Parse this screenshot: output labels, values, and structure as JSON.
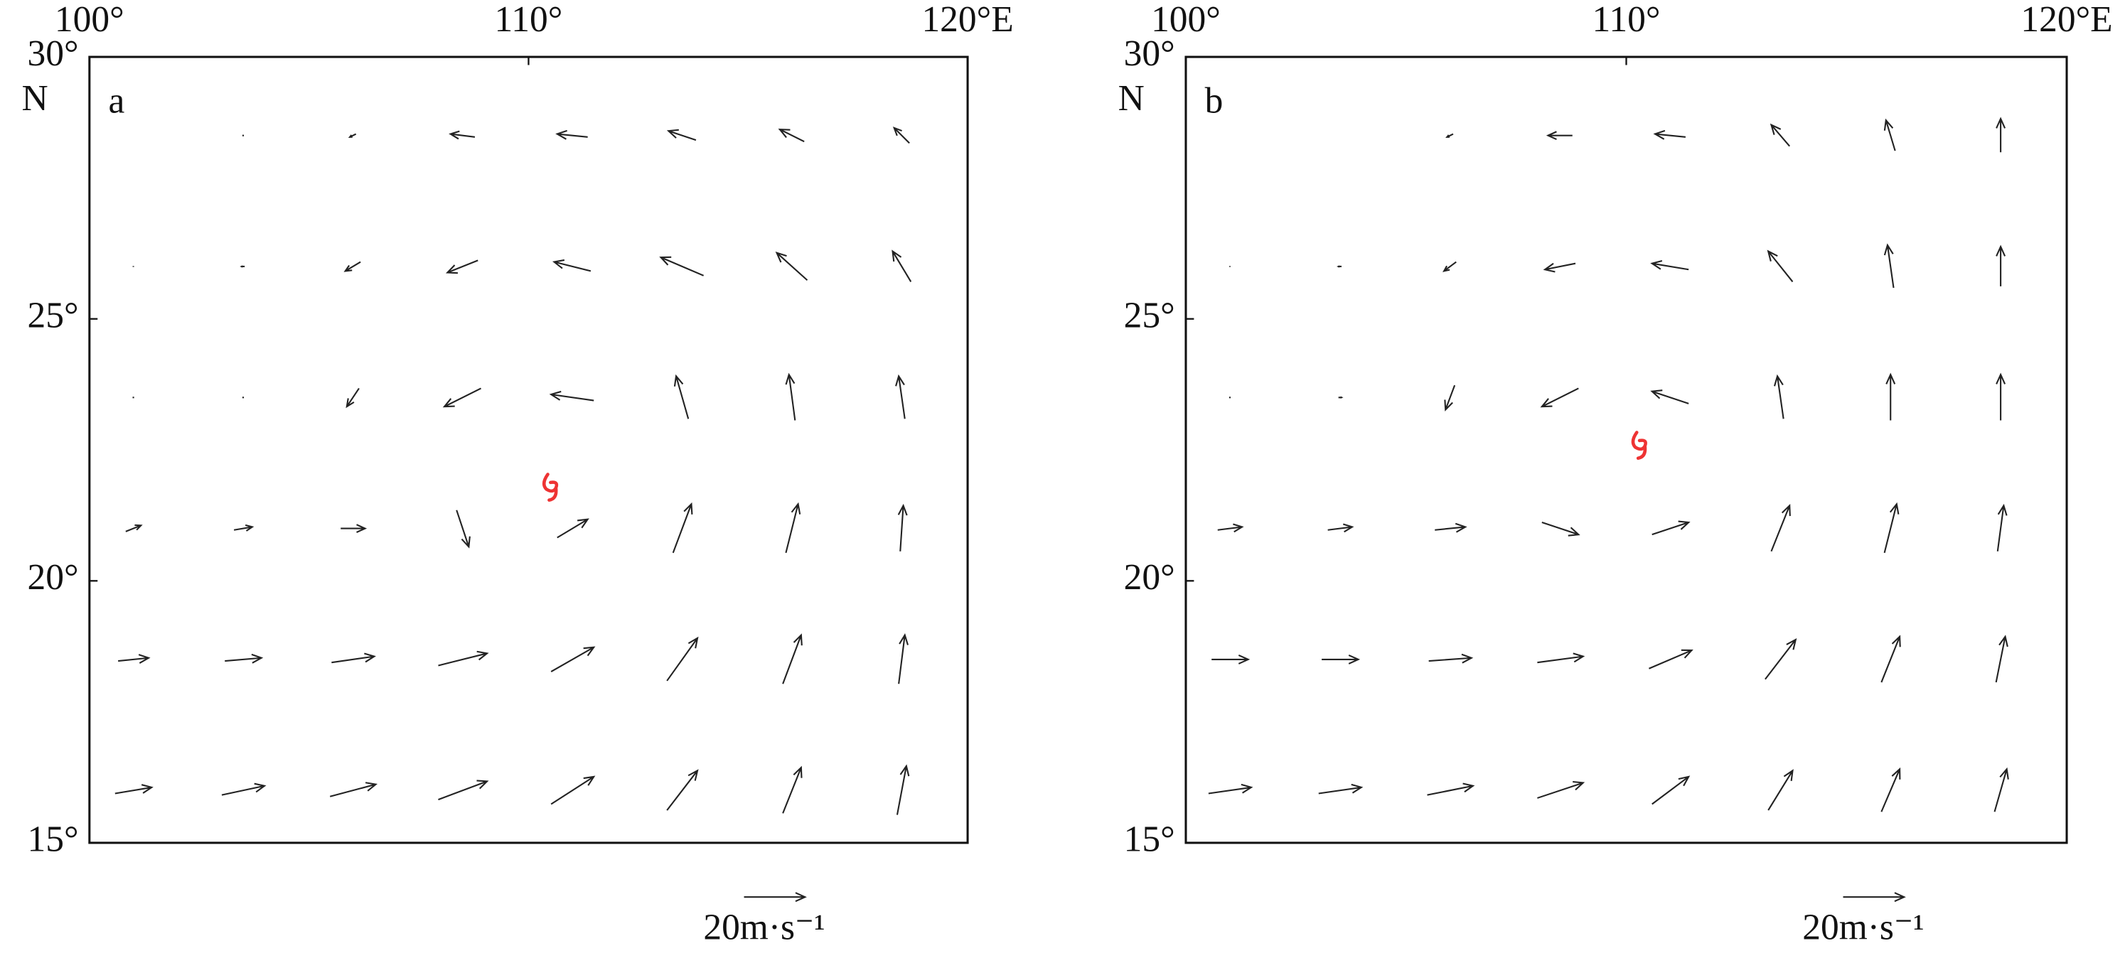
{
  "chart_data": [
    {
      "type": "quiver",
      "label": "a",
      "ylabel": "N",
      "xlim": [
        100,
        120
      ],
      "ylim": [
        15,
        30
      ],
      "xticks": [
        {
          "value": 100,
          "label": "100°"
        },
        {
          "value": 110,
          "label": "110°"
        },
        {
          "value": 120,
          "label": "120°E"
        }
      ],
      "yticks": [
        {
          "value": 30,
          "label": "30°"
        },
        {
          "value": 25,
          "label": "25°"
        },
        {
          "value": 20,
          "label": "20°"
        },
        {
          "value": 15,
          "label": "15°"
        }
      ],
      "lon": [
        101,
        103.5,
        106,
        108.5,
        111,
        113.5,
        116,
        118.5
      ],
      "lat": [
        16,
        18.5,
        21,
        23.5,
        26,
        28.5
      ],
      "u": [
        [
          12,
          14,
          15,
          16,
          14,
          10,
          6,
          3
        ],
        [
          10,
          12,
          14,
          16,
          14,
          10,
          6,
          2
        ],
        [
          5,
          6,
          8,
          4,
          10,
          6,
          4,
          1
        ],
        [
          0,
          0,
          -4,
          -12,
          -14,
          -4,
          -2,
          -2
        ],
        [
          0,
          -1,
          -5,
          -10,
          -12,
          -14,
          -10,
          -6
        ],
        [
          0,
          0,
          -2,
          -8,
          -10,
          -9,
          -8,
          -5
        ]
      ],
      "v": [
        [
          2,
          3,
          4,
          6,
          9,
          13,
          15,
          16
        ],
        [
          1,
          1,
          2,
          4,
          8,
          14,
          16,
          16
        ],
        [
          2,
          1,
          0,
          -12,
          6,
          16,
          16,
          15
        ],
        [
          0.5,
          0.5,
          -6,
          -6,
          2,
          14,
          15,
          14
        ],
        [
          0.3,
          0,
          -3,
          -4,
          3,
          6,
          9,
          10
        ],
        [
          0,
          -0.5,
          -1,
          1,
          1,
          3,
          4,
          5
        ]
      ],
      "typhoon": [
        110.5,
        21.8
      ],
      "reference": {
        "value": 20,
        "label": "20m·s⁻¹"
      }
    },
    {
      "type": "quiver",
      "label": "b",
      "ylabel": "N",
      "xlim": [
        100,
        120
      ],
      "ylim": [
        15,
        30
      ],
      "xticks": [
        {
          "value": 100,
          "label": "100°"
        },
        {
          "value": 110,
          "label": "110°"
        },
        {
          "value": 120,
          "label": "120°E"
        }
      ],
      "yticks": [
        {
          "value": 30,
          "label": "30°"
        },
        {
          "value": 25,
          "label": "25°"
        },
        {
          "value": 20,
          "label": "20°"
        },
        {
          "value": 15,
          "label": "15°"
        }
      ],
      "lon": [
        101,
        103.5,
        106,
        108.5,
        111,
        113.5,
        116,
        118.5
      ],
      "lat": [
        16,
        18.5,
        21,
        23.5,
        26,
        28.5
      ],
      "u": [
        [
          14,
          14,
          15,
          15,
          12,
          8,
          6,
          4
        ],
        [
          12,
          12,
          14,
          15,
          14,
          10,
          6,
          3
        ],
        [
          8,
          8,
          10,
          12,
          12,
          6,
          4,
          2
        ],
        [
          0,
          1,
          -3,
          -12,
          -12,
          -2,
          0,
          0
        ],
        [
          0,
          -1,
          -4,
          -10,
          -12,
          -8,
          -2,
          0
        ],
        [
          0,
          0,
          -2,
          -8,
          -10,
          -6,
          -3,
          0
        ]
      ],
      "v": [
        [
          2,
          2,
          3,
          5,
          9,
          13,
          14,
          14
        ],
        [
          0,
          0,
          1,
          2,
          6,
          13,
          15,
          15
        ],
        [
          1,
          1,
          1,
          -4,
          4,
          15,
          16,
          15
        ],
        [
          0.5,
          0,
          -8,
          -6,
          4,
          14,
          15,
          15
        ],
        [
          0.3,
          0,
          -3,
          -2,
          2,
          10,
          14,
          13
        ],
        [
          0,
          0,
          -1,
          0,
          1,
          7,
          10,
          11
        ]
      ],
      "typhoon": [
        110.3,
        22.6
      ],
      "reference": {
        "value": 20,
        "label": "20m·s⁻¹"
      }
    }
  ]
}
